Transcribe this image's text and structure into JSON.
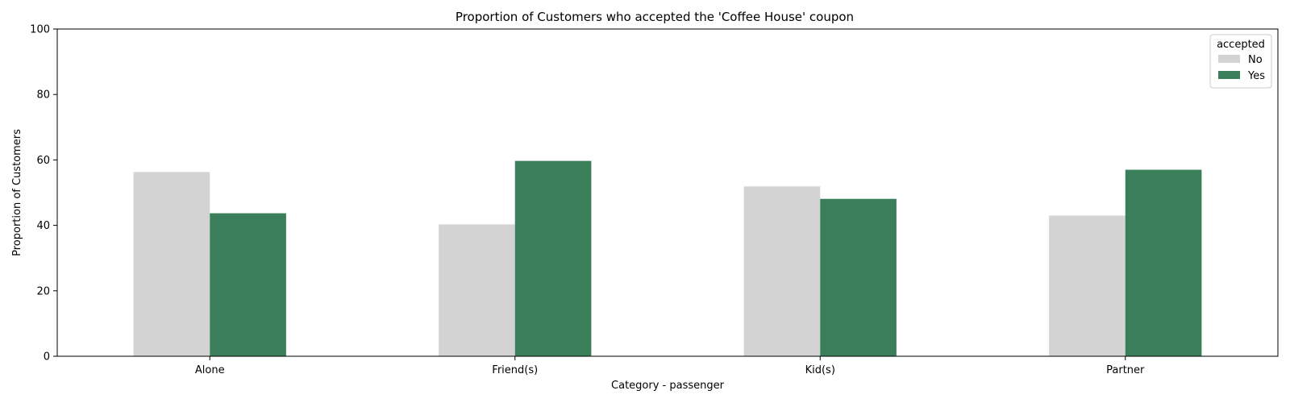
{
  "chart_data": {
    "type": "bar",
    "title": "Proportion of Customers who accepted the 'Coffee House' coupon",
    "xlabel": "Category - passenger",
    "ylabel": "Proportion of Customers",
    "categories": [
      "Alone",
      "Friend(s)",
      "Kid(s)",
      "Partner"
    ],
    "series": [
      {
        "name": "No",
        "values": [
          56.3,
          40.3,
          51.9,
          43.0
        ],
        "color": "#d3d3d3"
      },
      {
        "name": "Yes",
        "values": [
          43.7,
          59.7,
          48.1,
          57.0
        ],
        "color": "#3b7f5a"
      }
    ],
    "ylim": [
      0,
      100
    ],
    "yticks": [
      0,
      20,
      40,
      60,
      80,
      100
    ],
    "legend": {
      "title": "accepted",
      "placement": "top-right"
    },
    "grid": false
  }
}
